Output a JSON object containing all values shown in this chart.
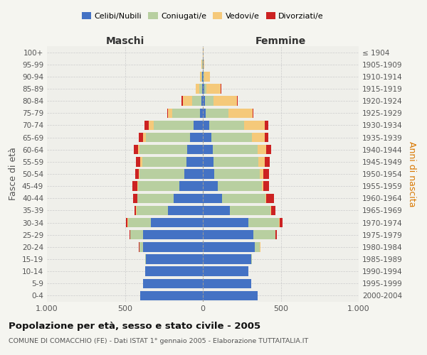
{
  "age_groups": [
    "0-4",
    "5-9",
    "10-14",
    "15-19",
    "20-24",
    "25-29",
    "30-34",
    "35-39",
    "40-44",
    "45-49",
    "50-54",
    "55-59",
    "60-64",
    "65-69",
    "70-74",
    "75-79",
    "80-84",
    "85-89",
    "90-94",
    "95-99",
    "100+"
  ],
  "birth_years": [
    "2000-2004",
    "1995-1999",
    "1990-1994",
    "1985-1989",
    "1980-1984",
    "1975-1979",
    "1970-1974",
    "1965-1969",
    "1960-1964",
    "1955-1959",
    "1950-1954",
    "1945-1949",
    "1940-1944",
    "1935-1939",
    "1930-1934",
    "1925-1929",
    "1920-1924",
    "1915-1919",
    "1910-1914",
    "1905-1909",
    "≤ 1904"
  ],
  "colors": {
    "celibi": "#4472c4",
    "coniugati": "#b8cfa0",
    "vedovi": "#f5c97a",
    "divorziati": "#cc2222"
  },
  "maschi": {
    "celibi": [
      400,
      385,
      370,
      365,
      385,
      385,
      335,
      225,
      185,
      150,
      120,
      105,
      100,
      80,
      60,
      20,
      10,
      5,
      3,
      2,
      2
    ],
    "coniugati": [
      0,
      0,
      0,
      5,
      20,
      80,
      145,
      200,
      235,
      265,
      285,
      285,
      305,
      285,
      255,
      175,
      60,
      20,
      8,
      3,
      0
    ],
    "vedovi": [
      0,
      0,
      0,
      0,
      2,
      2,
      2,
      2,
      2,
      3,
      5,
      10,
      10,
      20,
      30,
      30,
      60,
      20,
      8,
      2,
      0
    ],
    "divorziati": [
      0,
      0,
      0,
      0,
      2,
      5,
      10,
      10,
      25,
      35,
      25,
      30,
      30,
      25,
      30,
      5,
      5,
      2,
      0,
      0,
      0
    ]
  },
  "femmine": {
    "celibi": [
      350,
      310,
      290,
      310,
      335,
      325,
      290,
      175,
      125,
      95,
      75,
      70,
      65,
      55,
      40,
      20,
      15,
      10,
      5,
      3,
      2
    ],
    "coniugati": [
      0,
      0,
      0,
      5,
      30,
      140,
      200,
      260,
      275,
      285,
      290,
      285,
      285,
      260,
      225,
      145,
      55,
      15,
      5,
      2,
      0
    ],
    "vedovi": [
      0,
      0,
      0,
      0,
      3,
      3,
      3,
      3,
      5,
      8,
      25,
      40,
      55,
      80,
      130,
      155,
      150,
      90,
      35,
      5,
      2
    ],
    "divorziati": [
      0,
      0,
      0,
      0,
      3,
      5,
      20,
      30,
      50,
      35,
      35,
      35,
      35,
      25,
      25,
      5,
      2,
      2,
      0,
      0,
      0
    ]
  },
  "title": "Popolazione per età, sesso e stato civile - 2005",
  "subtitle": "COMUNE DI COMACCHIO (FE) - Dati ISTAT 1° gennaio 2005 - Elaborazione TUTTAITALIA.IT",
  "xlabel_left": "Maschi",
  "xlabel_right": "Femmine",
  "ylabel_left": "Fasce di età",
  "ylabel_right": "Anni di nascita",
  "legend_labels": [
    "Celibi/Nubili",
    "Coniugati/e",
    "Vedovi/e",
    "Divorziati/e"
  ],
  "xlim": 1000,
  "background_color": "#f5f5f0",
  "plot_bg_color": "#f0f0e8",
  "grid_color": "#cccccc"
}
